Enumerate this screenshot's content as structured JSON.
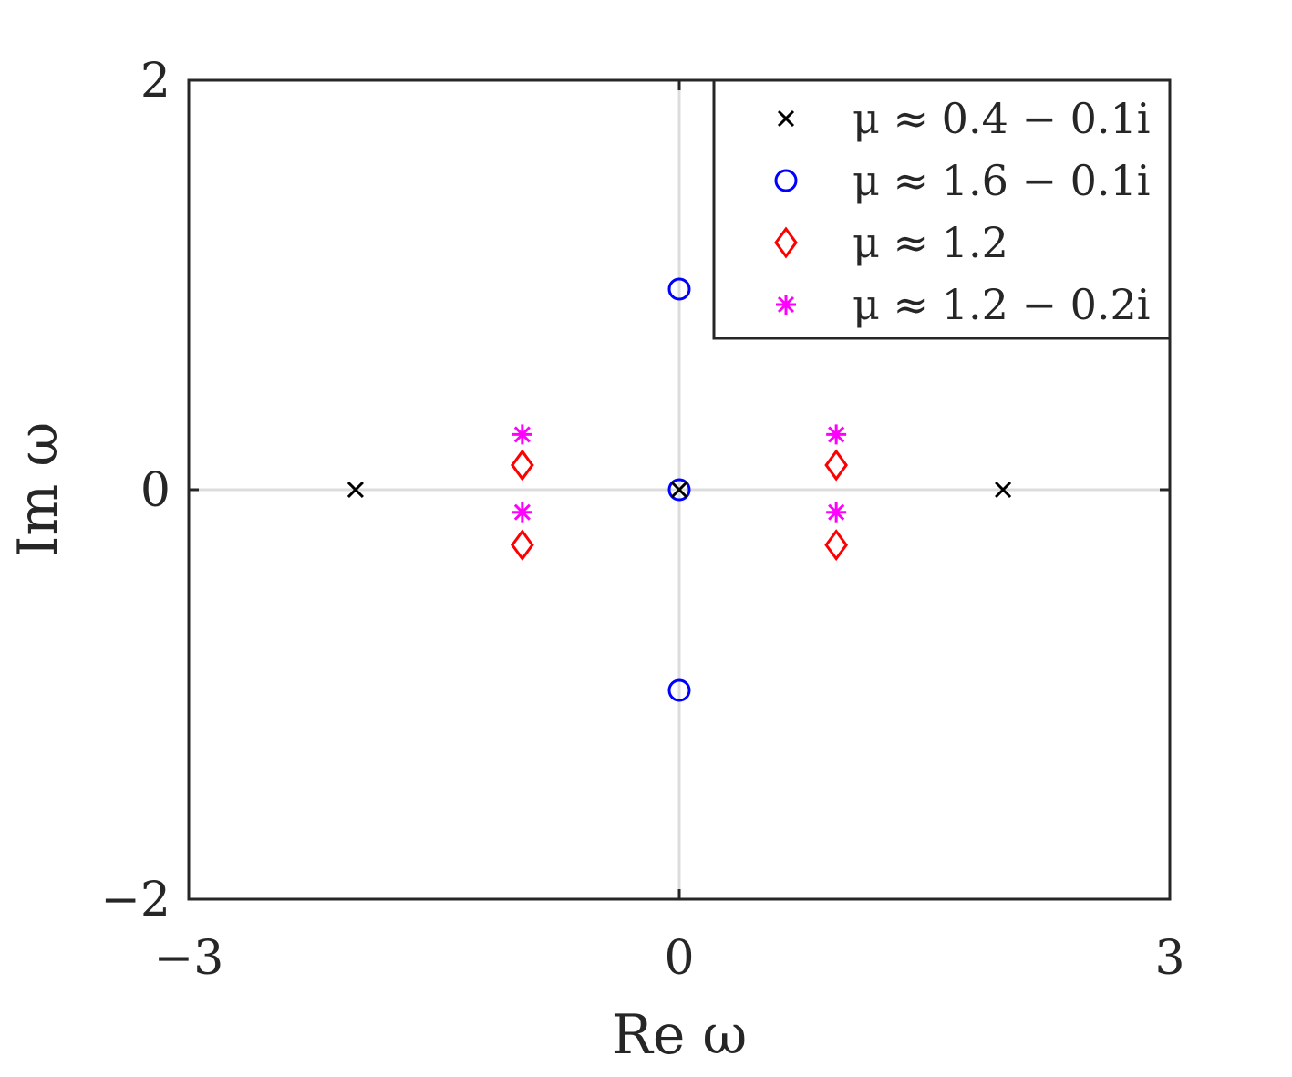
{
  "chart_data": {
    "type": "scatter",
    "title": "",
    "xlabel": "Re ω",
    "ylabel": "Im ω",
    "xlim": [
      -3,
      3
    ],
    "ylim": [
      -2,
      2
    ],
    "xticks": [
      -3,
      0,
      3
    ],
    "yticks": [
      -2,
      0,
      2
    ],
    "xtick_labels": [
      "−3",
      "0",
      "3"
    ],
    "ytick_labels": [
      "−2",
      "0",
      "2"
    ],
    "grid": false,
    "zero_lines": true,
    "legend_position": "top-right",
    "series": [
      {
        "name": "μ ≈ 0.4 − 0.1i",
        "marker": "x",
        "color": "#000000",
        "points": [
          [
            -1.98,
            0.0
          ],
          [
            0.0,
            0.0
          ],
          [
            1.98,
            0.0
          ]
        ]
      },
      {
        "name": "μ ≈ 1.6 − 0.1i",
        "marker": "circle",
        "color": "#0000ff",
        "points": [
          [
            0.0,
            0.98
          ],
          [
            0.0,
            0.0
          ],
          [
            0.0,
            -0.98
          ]
        ]
      },
      {
        "name": "μ ≈ 1.2",
        "marker": "diamond",
        "color": "#ff0000",
        "points": [
          [
            -0.96,
            0.12
          ],
          [
            -0.96,
            -0.27
          ],
          [
            0.96,
            0.12
          ],
          [
            0.96,
            -0.27
          ]
        ]
      },
      {
        "name": "μ ≈ 1.2 − 0.2i",
        "marker": "asterisk",
        "color": "#ff00ff",
        "points": [
          [
            -0.96,
            0.27
          ],
          [
            -0.96,
            -0.11
          ],
          [
            0.96,
            0.27
          ],
          [
            0.96,
            -0.11
          ]
        ]
      }
    ]
  },
  "colors": {
    "axes": "#262626",
    "zero_line": "#dcdcdc",
    "background": "#ffffff"
  }
}
